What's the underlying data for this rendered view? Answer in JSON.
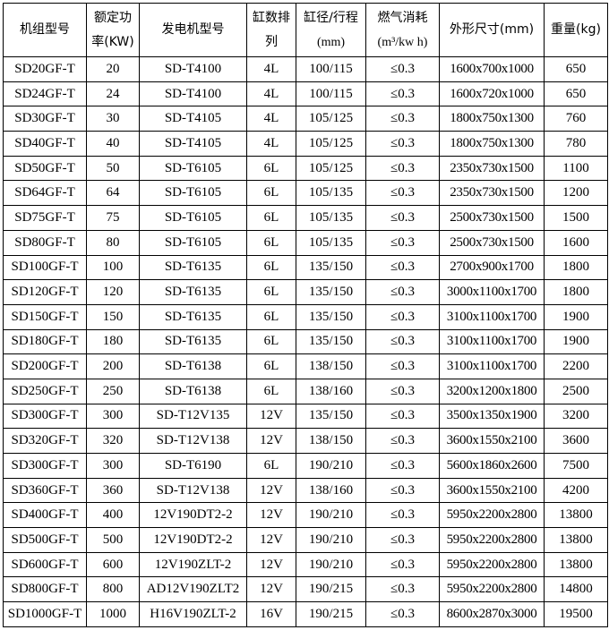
{
  "headers": {
    "model": "机组型号",
    "power_1": "额定功",
    "power_2": "率(KW)",
    "engine": "发电机型号",
    "cyl_1": "缸数排",
    "cyl_2": "列",
    "bore_1": "缸径/行程",
    "bore_2": "(mm)",
    "gas_1": "燃气消耗",
    "gas_2": "(m³/kw h)",
    "size": "外形尺寸(mm)",
    "weight": "重量(kg)"
  },
  "rows": [
    [
      "SD20GF-T",
      "20",
      "SD-T4100",
      "4L",
      "100/115",
      "≤0.3",
      "1600x700x1000",
      "650"
    ],
    [
      "SD24GF-T",
      "24",
      "SD-T4100",
      "4L",
      "100/115",
      "≤0.3",
      "1600x720x1000",
      "650"
    ],
    [
      "SD30GF-T",
      "30",
      "SD-T4105",
      "4L",
      "105/125",
      "≤0.3",
      "1800x750x1300",
      "760"
    ],
    [
      "SD40GF-T",
      "40",
      "SD-T4105",
      "4L",
      "105/125",
      "≤0.3",
      "1800x750x1300",
      "780"
    ],
    [
      "SD50GF-T",
      "50",
      "SD-T6105",
      "6L",
      "105/125",
      "≤0.3",
      "2350x730x1500",
      "1100"
    ],
    [
      "SD64GF-T",
      "64",
      "SD-T6105",
      "6L",
      "105/135",
      "≤0.3",
      "2350x730x1500",
      "1200"
    ],
    [
      "SD75GF-T",
      "75",
      "SD-T6105",
      "6L",
      "105/135",
      "≤0.3",
      "2500x730x1500",
      "1500"
    ],
    [
      "SD80GF-T",
      "80",
      "SD-T6105",
      "6L",
      "105/135",
      "≤0.3",
      "2500x730x1500",
      "1600"
    ],
    [
      "SD100GF-T",
      "100",
      "SD-T6135",
      "6L",
      "135/150",
      "≤0.3",
      "2700x900x1700",
      "1800"
    ],
    [
      "SD120GF-T",
      "120",
      "SD-T6135",
      "6L",
      "135/150",
      "≤0.3",
      "3000x1100x1700",
      "1800"
    ],
    [
      "SD150GF-T",
      "150",
      "SD-T6135",
      "6L",
      "135/150",
      "≤0.3",
      "3100x1100x1700",
      "1900"
    ],
    [
      "SD180GF-T",
      "180",
      "SD-T6135",
      "6L",
      "135/150",
      "≤0.3",
      "3100x1100x1700",
      "1900"
    ],
    [
      "SD200GF-T",
      "200",
      "SD-T6138",
      "6L",
      "138/150",
      "≤0.3",
      "3100x1100x1700",
      "2200"
    ],
    [
      "SD250GF-T",
      "250",
      "SD-T6138",
      "6L",
      "138/160",
      "≤0.3",
      "3200x1200x1800",
      "2500"
    ],
    [
      "SD300GF-T",
      "300",
      "SD-T12V135",
      "12V",
      "135/150",
      "≤0.3",
      "3500x1350x1900",
      "3200"
    ],
    [
      "SD320GF-T",
      "320",
      "SD-T12V138",
      "12V",
      "138/150",
      "≤0.3",
      "3600x1550x2100",
      "3600"
    ],
    [
      "SD300GF-T",
      "300",
      "SD-T6190",
      "6L",
      "190/210",
      "≤0.3",
      "5600x1860x2600",
      "7500"
    ],
    [
      "SD360GF-T",
      "360",
      "SD-T12V138",
      "12V",
      "138/160",
      "≤0.3",
      "3600x1550x2100",
      "4200"
    ],
    [
      "SD400GF-T",
      "400",
      "12V190DT2-2",
      "12V",
      "190/210",
      "≤0.3",
      "5950x2200x2800",
      "13800"
    ],
    [
      "SD500GF-T",
      "500",
      "12V190DT2-2",
      "12V",
      "190/210",
      "≤0.3",
      "5950x2200x2800",
      "13800"
    ],
    [
      "SD600GF-T",
      "600",
      "12V190ZLT-2",
      "12V",
      "190/210",
      "≤0.3",
      "5950x2200x2800",
      "13800"
    ],
    [
      "SD800GF-T",
      "800",
      "AD12V190ZLT2",
      "12V",
      "190/215",
      "≤0.3",
      "5950x2200x2800",
      "14800"
    ],
    [
      "SD1000GF-T",
      "1000",
      "H16V190ZLT-2",
      "16V",
      "190/215",
      "≤0.3",
      "8600x2870x3000",
      "19500"
    ]
  ]
}
